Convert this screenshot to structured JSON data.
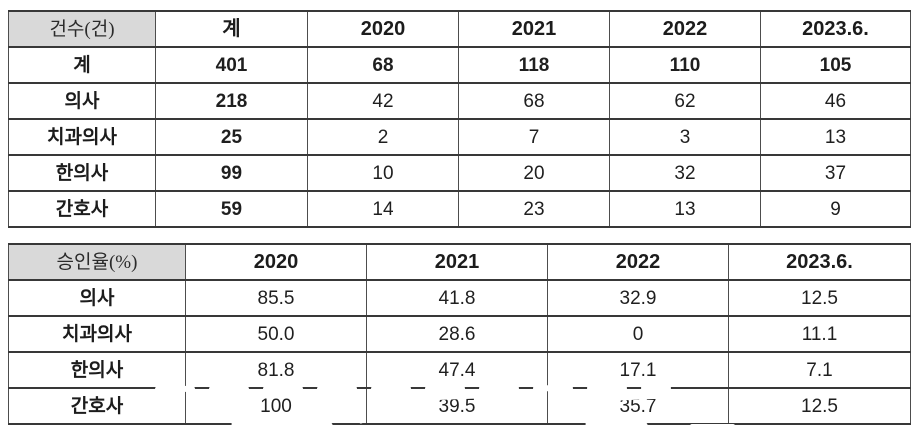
{
  "colors": {
    "header_bg": "#d9d9d9",
    "border_dark": "#383838",
    "border_light": "#4d4d4d",
    "text": "#1f1f1f",
    "scribble": "#ffffff"
  },
  "cases_table": {
    "corner_label": "건수(건)",
    "columns": [
      "계",
      "2020",
      "2021",
      "2022",
      "2023.6."
    ],
    "first_column_emphasis": true,
    "rows": [
      {
        "label": "계",
        "values": [
          "401",
          "68",
          "118",
          "110",
          "105"
        ],
        "emphasis": true
      },
      {
        "label": "의사",
        "values": [
          "218",
          "42",
          "68",
          "62",
          "46"
        ]
      },
      {
        "label": "치과의사",
        "values": [
          "25",
          "2",
          "7",
          "3",
          "13"
        ]
      },
      {
        "label": "한의사",
        "values": [
          "99",
          "10",
          "20",
          "32",
          "37"
        ]
      },
      {
        "label": "간호사",
        "values": [
          "59",
          "14",
          "23",
          "13",
          "9"
        ]
      }
    ]
  },
  "approval_table": {
    "corner_label": "승인율(%)",
    "columns": [
      "2020",
      "2021",
      "2022",
      "2023.6."
    ],
    "first_column_emphasis": false,
    "partially_obscured_row": "간호사",
    "rows": [
      {
        "label": "의사",
        "values": [
          "85.5",
          "41.8",
          "32.9",
          "12.5"
        ]
      },
      {
        "label": "치과의사",
        "values": [
          "50.0",
          "28.6",
          "0",
          "11.1"
        ]
      },
      {
        "label": "한의사",
        "values": [
          "81.8",
          "47.4",
          "17.1",
          "7.1"
        ]
      },
      {
        "label": "간호사",
        "values": [
          "100",
          "39.5",
          "35.7",
          "12.5"
        ]
      }
    ]
  }
}
